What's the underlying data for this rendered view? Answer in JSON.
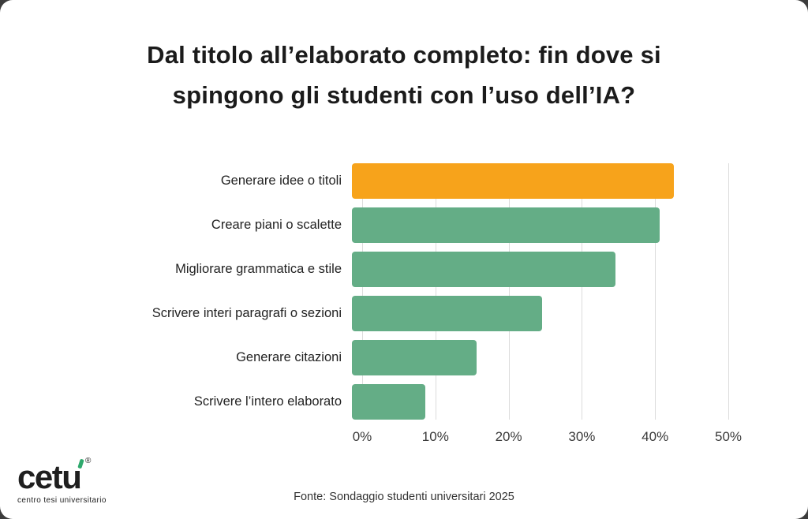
{
  "page": {
    "background": "#3c3c3c",
    "card_background": "#ffffff"
  },
  "title": {
    "lines": [
      "Dal titolo all’elaborato completo: fin dove si",
      "spingono gli studenti con l’uso dell’IA?"
    ]
  },
  "chart_data": {
    "type": "bar",
    "orientation": "horizontal",
    "title": "Dal titolo all’elaborato completo: fin dove si spingono gli studenti con l’uso dell’IA?",
    "categories": [
      "Generare idee o titoli",
      "Creare piani o scalette",
      "Migliorare grammatica e stile",
      "Scrivere interi paragrafi o sezioni",
      "Generare citazioni",
      "Scrivere l’intero elaborato"
    ],
    "values": [
      44,
      42,
      36,
      26,
      17,
      10
    ],
    "xlim": [
      0,
      50
    ],
    "x_ticks": [
      "0%",
      "10%",
      "20%",
      "30%",
      "40%",
      "50%"
    ],
    "xlabel": "",
    "ylabel": "",
    "grid": true,
    "legend": false,
    "highlight_index": 0,
    "highlight_color": "#F7A31B",
    "bar_color": "#64AD86",
    "gridline_color": "#dcdcdc"
  },
  "footer": {
    "source": "Fonte: Sondaggio studenti universitari 2025"
  },
  "logo": {
    "name": "cetu",
    "registered": "®",
    "tagline": "centro tesi universitario",
    "accent_color": "#2FA96D"
  }
}
